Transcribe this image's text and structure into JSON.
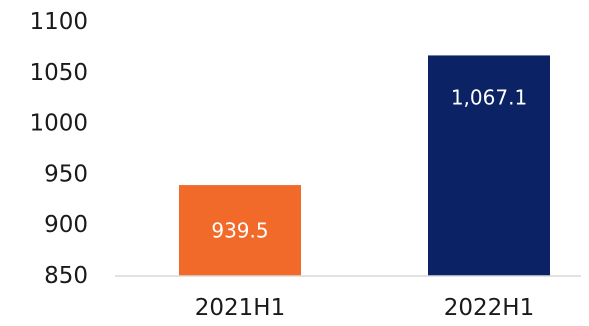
{
  "chart_data": {
    "type": "bar",
    "categories": [
      "2021H1",
      "2022H1"
    ],
    "values": [
      939.5,
      1067.1
    ],
    "value_labels": [
      "939.5",
      "1,067.1"
    ],
    "bar_colors": [
      "#F26A29",
      "#0B2265"
    ],
    "ylim": [
      850,
      1100
    ],
    "yticks": [
      850,
      900,
      950,
      1000,
      1050,
      1100
    ],
    "ytick_labels": [
      "850",
      "900",
      "950",
      "1000",
      "1050",
      "1100"
    ],
    "grid": false,
    "title": "",
    "xlabel": "",
    "ylabel": ""
  }
}
